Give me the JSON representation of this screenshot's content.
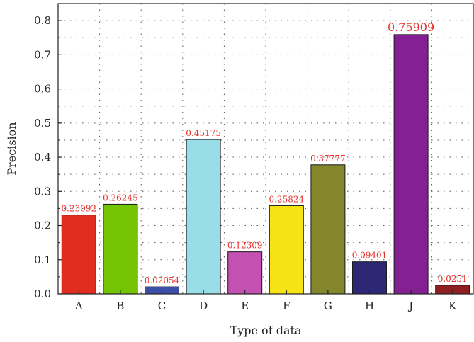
{
  "chart_data": {
    "type": "bar",
    "xlabel": "Type of data",
    "ylabel": "Precision",
    "ylim": [
      0,
      0.85
    ],
    "yticks": [
      0.0,
      0.1,
      0.2,
      0.3,
      0.4,
      0.5,
      0.6,
      0.7,
      0.8
    ],
    "ytick_labels": [
      "0.0",
      "0.1",
      "0.2",
      "0.3",
      "0.4",
      "0.5",
      "0.6",
      "0.7",
      "0.8"
    ],
    "grid": true,
    "categories": [
      "A",
      "B",
      "C",
      "D",
      "E",
      "F",
      "G",
      "H",
      "J",
      "K"
    ],
    "values": [
      0.23092,
      0.26245,
      0.02054,
      0.45175,
      0.12309,
      0.25824,
      0.37777,
      0.09401,
      0.75909,
      0.0251
    ],
    "value_labels": [
      "0.23092",
      "0.26245",
      "0.02054",
      "0.45175",
      "0.12309",
      "0.25824",
      "0.37777",
      "0.09401",
      "0.75909",
      "0.0251"
    ],
    "colors": [
      "#e12d1f",
      "#74c404",
      "#3b4ea8",
      "#99dde9",
      "#c451b1",
      "#f5e315",
      "#84862b",
      "#2d2876",
      "#842094",
      "#8e1e1f"
    ],
    "label_color": "#e8302a"
  }
}
